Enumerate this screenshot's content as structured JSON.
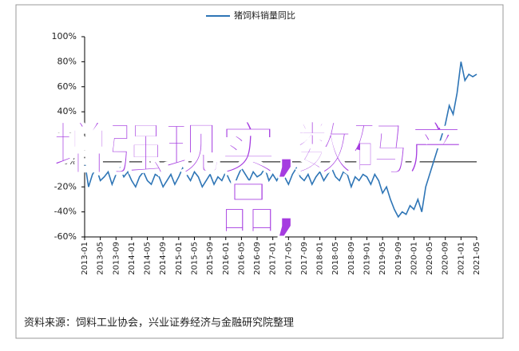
{
  "chart_data": {
    "type": "line",
    "series": [
      {
        "name": "猪饲料销量同比",
        "color": "#2e75b6",
        "values": [
          0,
          -20,
          -10,
          -5,
          -15,
          -12,
          -8,
          -18,
          -10,
          -5,
          -12,
          -8,
          -15,
          -20,
          -12,
          -8,
          -15,
          -18,
          -10,
          -12,
          -20,
          -15,
          -10,
          -18,
          -12,
          -5,
          -10,
          -15,
          -8,
          -12,
          -20,
          -15,
          -10,
          -18,
          -12,
          -15,
          -8,
          -15,
          -20,
          -12,
          -5,
          -10,
          -15,
          -8,
          -12,
          -10,
          -5,
          -15,
          -10,
          -15,
          -8,
          -12,
          -18,
          -10,
          -5,
          -12,
          -15,
          -10,
          -18,
          -12,
          -8,
          -15,
          -10,
          -5,
          -12,
          -15,
          -8,
          -10,
          -20,
          -12,
          -15,
          -10,
          -12,
          -18,
          -10,
          -15,
          -25,
          -20,
          -30,
          -38,
          -44,
          -40,
          -42,
          -35,
          -38,
          -30,
          -40,
          -20,
          -10,
          0,
          10,
          20,
          30,
          45,
          38,
          55,
          80,
          65,
          70,
          68,
          70
        ]
      }
    ],
    "categories": [
      "2013-01",
      null,
      null,
      null,
      "2013-05",
      null,
      null,
      null,
      "2013-09",
      null,
      null,
      null,
      "2014-01",
      null,
      null,
      null,
      "2014-05",
      null,
      null,
      null,
      "2014-09",
      null,
      null,
      null,
      "2015-01",
      null,
      null,
      null,
      "2015-05",
      null,
      null,
      null,
      "2015-09",
      null,
      null,
      null,
      "2016-01",
      null,
      null,
      null,
      "2016-05",
      null,
      null,
      null,
      "2016-09",
      null,
      null,
      null,
      "2017-01",
      null,
      null,
      null,
      "2017-05",
      null,
      null,
      null,
      "2017-09",
      null,
      null,
      null,
      "2018-01",
      null,
      null,
      null,
      "2018-05",
      null,
      null,
      null,
      "2018-09",
      null,
      null,
      null,
      "2019-01",
      null,
      null,
      null,
      "2019-05",
      null,
      null,
      null,
      "2019-09",
      null,
      null,
      null,
      "2020-01",
      null,
      null,
      null,
      "2020-05",
      null,
      null,
      null,
      "2020-09",
      null,
      null,
      null,
      "2021-01",
      null,
      null,
      null,
      "2021-05"
    ],
    "ylim": [
      -60,
      100
    ],
    "yticks": [
      {
        "value": -60,
        "label": "-60%"
      },
      {
        "value": -40,
        "label": "-40%"
      },
      {
        "value": -20,
        "label": "-20%"
      },
      {
        "value": 0,
        "label": "0%"
      },
      {
        "value": 20,
        "label": "20%"
      },
      {
        "value": 40,
        "label": "40%"
      },
      {
        "value": 60,
        "label": "60%"
      },
      {
        "value": 80,
        "label": "80%"
      },
      {
        "value": 100,
        "label": "100%"
      }
    ],
    "source": "资料来源：饲料工业协会，兴业证券经济与金融研究院整理"
  },
  "overlay_text": "增强现实,数码产品,"
}
